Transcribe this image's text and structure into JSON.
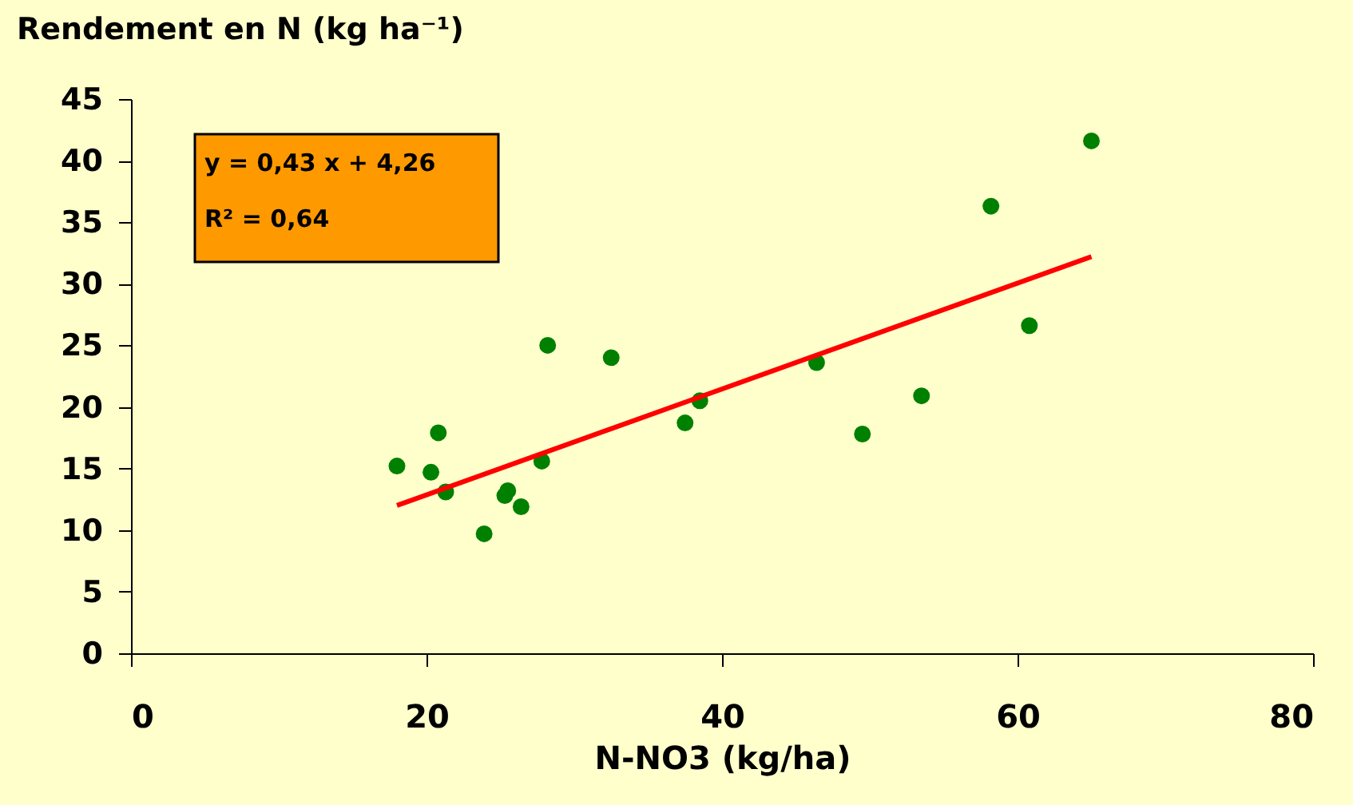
{
  "chart_data": {
    "type": "scatter",
    "ylabel": "Rendement en N (kg ha⁻¹)",
    "xlabel": "N-NO3 (kg/ha)",
    "series": [
      {
        "type": "scatter",
        "color": "#008000",
        "marker": "circle",
        "x": [
          18.0,
          20.3,
          20.8,
          21.3,
          23.9,
          25.3,
          25.5,
          26.4,
          27.8,
          28.2,
          32.5,
          37.5,
          38.5,
          46.4,
          49.5,
          53.5,
          58.2,
          60.8,
          65.0
        ],
        "values": [
          15.2,
          14.7,
          17.9,
          13.1,
          9.7,
          12.8,
          13.2,
          11.9,
          15.6,
          25.0,
          24.0,
          18.7,
          20.5,
          23.6,
          17.8,
          20.9,
          36.3,
          26.6,
          41.6
        ]
      },
      {
        "type": "line",
        "color": "#ff0000",
        "line_style": "solid",
        "x": [
          18.0,
          65.0
        ],
        "values": [
          12.0,
          32.2
        ]
      }
    ],
    "annotations": [
      "y = 0,43 x + 4,26",
      "R² = 0,64"
    ],
    "xlim": [
      0,
      80
    ],
    "xticks": [
      0,
      20,
      40,
      60,
      80
    ],
    "ylim": [
      0,
      45
    ],
    "yticks": [
      0,
      5,
      10,
      15,
      20,
      25,
      30,
      35,
      40,
      45
    ],
    "grid": false
  }
}
